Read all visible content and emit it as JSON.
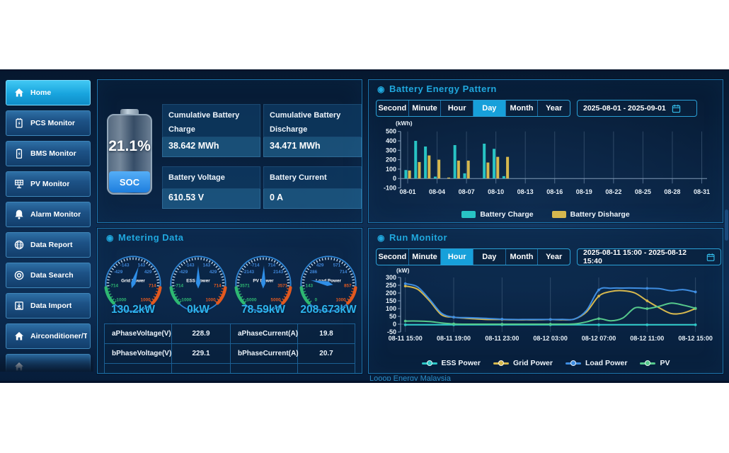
{
  "footer": {
    "text": "Looop Energy Malaysia"
  },
  "sidebar": {
    "items": [
      {
        "label": "Home",
        "icon": "home",
        "active": true
      },
      {
        "label": "PCS Monitor",
        "icon": "pcs",
        "active": false
      },
      {
        "label": "BMS Monitor",
        "icon": "bms",
        "active": false
      },
      {
        "label": "PV Monitor",
        "icon": "pv",
        "active": false
      },
      {
        "label": "Alarm Monitor",
        "icon": "alarm",
        "active": false
      },
      {
        "label": "Data Report",
        "icon": "globe",
        "active": false
      },
      {
        "label": "Data Search",
        "icon": "target",
        "active": false
      },
      {
        "label": "Data Import",
        "icon": "import",
        "active": false
      },
      {
        "label": "Airconditioner/Ten",
        "icon": "aircon",
        "active": false
      },
      {
        "label": "",
        "icon": "home",
        "active": false
      }
    ]
  },
  "battery_status": {
    "soc_percent": "21.1%",
    "soc_label": "SOC",
    "cards": [
      {
        "label": "Cumulative Battery Charge",
        "value": "38.642 MWh"
      },
      {
        "label": "Cumulative Battery Discharge",
        "value": "34.471 MWh"
      },
      {
        "label": "Battery Voltage",
        "value": "610.53 V"
      },
      {
        "label": "Battery Current",
        "value": "0 A"
      }
    ]
  },
  "battery_energy_pattern": {
    "title": "Battery Energy Pattern",
    "tabs": [
      "Second",
      "Minute",
      "Hour",
      "Day",
      "Month",
      "Year"
    ],
    "active_tab": "Day",
    "date_range": "2025-08-01 - 2025-09-01",
    "chart_data": {
      "type": "bar",
      "unit_label": "(kWh)",
      "ylim": [
        -100,
        500
      ],
      "yticks": [
        500,
        400,
        300,
        200,
        100,
        0,
        -100
      ],
      "categories": [
        "08-01",
        "08-02",
        "08-03",
        "08-04",
        "08-05",
        "08-06",
        "08-07",
        "08-08",
        "08-09",
        "08-10",
        "08-11",
        "08-12",
        "08-13",
        "08-14",
        "08-15",
        "08-16",
        "08-17",
        "08-18",
        "08-19",
        "08-20",
        "08-21",
        "08-22",
        "08-23",
        "08-24",
        "08-25",
        "08-26",
        "08-27",
        "08-28",
        "08-29",
        "08-30",
        "08-31"
      ],
      "xtick_every": 3,
      "legend_position": "bottom",
      "grid": true,
      "series": [
        {
          "name": "Battery Charge",
          "color": "#28c4c4",
          "values": [
            90,
            400,
            340,
            20,
            0,
            355,
            55,
            0,
            370,
            315,
            25,
            0,
            0,
            0,
            0,
            0,
            0,
            0,
            0,
            0,
            0,
            0,
            0,
            0,
            0,
            0,
            0,
            0,
            0,
            0,
            0
          ]
        },
        {
          "name": "Battery Disharge",
          "color": "#d6b84e",
          "values": [
            85,
            175,
            245,
            200,
            10,
            190,
            190,
            0,
            170,
            230,
            230,
            0,
            0,
            0,
            0,
            0,
            0,
            0,
            0,
            0,
            0,
            0,
            0,
            0,
            0,
            0,
            0,
            0,
            0,
            0,
            0
          ]
        }
      ]
    }
  },
  "metering_data": {
    "title": "Metering Data",
    "gauges": [
      {
        "name": "Grid Power",
        "value": 130.2,
        "value_label": "130.2kW",
        "min": -1000,
        "max": 1000,
        "scale_rows": [
          [
            "-143",
            "143"
          ],
          [
            "-429",
            "429"
          ],
          [
            "-714",
            "714"
          ],
          [
            "-1000",
            "1000"
          ]
        ]
      },
      {
        "name": "ESS Power",
        "value": 0,
        "value_label": "0kW",
        "min": -1000,
        "max": 1000,
        "scale_rows": [
          [
            "-143",
            "143"
          ],
          [
            "-429",
            "429"
          ],
          [
            "-714",
            "714"
          ],
          [
            "-1000",
            "1000"
          ]
        ]
      },
      {
        "name": "PV Power",
        "value": 78.59,
        "value_label": "78.59kW",
        "min": -5000,
        "max": 5000,
        "scale_rows": [
          [
            "-714",
            "714"
          ],
          [
            "-2143",
            "2143"
          ],
          [
            "-3571",
            "3571"
          ],
          [
            "-5000",
            "5000"
          ]
        ]
      },
      {
        "name": "Load Power",
        "value": 208.673,
        "value_label": "208.673kW",
        "min": 0,
        "max": 1000,
        "scale_rows": [
          [
            "429",
            "571"
          ],
          [
            "286",
            "714"
          ],
          [
            "143",
            "857"
          ],
          [
            "0",
            "1000"
          ]
        ]
      }
    ],
    "table": {
      "rows": [
        [
          "aPhaseVoltage(V)",
          "228.9",
          "aPhaseCurrent(A)",
          "19.8"
        ],
        [
          "bPhaseVoltage(V)",
          "229.1",
          "bPhaseCurrent(A)",
          "20.7"
        ],
        [
          "",
          "",
          "",
          ""
        ]
      ]
    }
  },
  "run_monitor": {
    "title": "Run Monitor",
    "tabs": [
      "Second",
      "Minute",
      "Hour",
      "Day",
      "Month",
      "Year"
    ],
    "active_tab": "Hour",
    "date_range": "2025-08-11 15:00 - 2025-08-12 15:40",
    "chart_data": {
      "type": "line",
      "unit_label": "(kW)",
      "ylim": [
        -50,
        300
      ],
      "yticks": [
        300,
        250,
        200,
        150,
        100,
        50,
        0,
        -50
      ],
      "xtick_labels": [
        "08-11 15:00",
        "08-11 19:00",
        "08-11 23:00",
        "08-12 03:00",
        "08-12 07:00",
        "08-12 11:00",
        "08-12 15:00"
      ],
      "hours_per_point": 1,
      "legend_position": "bottom",
      "grid": true,
      "series": [
        {
          "name": "ESS Power",
          "color": "#2ec7c7",
          "values": [
            -4,
            -4,
            -4,
            -4,
            -4,
            -4,
            -4,
            -4,
            -4,
            -4,
            -4,
            -4,
            -4,
            -4,
            -4,
            -4,
            -4,
            -4,
            -4,
            -4,
            -4,
            -4,
            -4,
            -4,
            -4
          ]
        },
        {
          "name": "Grid Power",
          "color": "#d6b84e",
          "values": [
            245,
            225,
            150,
            60,
            45,
            38,
            33,
            30,
            30,
            28,
            28,
            28,
            30,
            28,
            33,
            80,
            180,
            210,
            215,
            200,
            150,
            105,
            68,
            72,
            100
          ]
        },
        {
          "name": "Load Power",
          "color": "#3f8de0",
          "values": [
            260,
            240,
            160,
            70,
            45,
            42,
            40,
            36,
            32,
            30,
            30,
            30,
            30,
            31,
            33,
            90,
            220,
            231,
            232,
            232,
            230,
            228,
            215,
            222,
            207
          ]
        },
        {
          "name": "PV",
          "color": "#56c98c",
          "values": [
            20,
            20,
            17,
            8,
            2,
            0,
            0,
            0,
            0,
            0,
            0,
            0,
            0,
            0,
            2,
            15,
            35,
            22,
            40,
            105,
            100,
            115,
            135,
            122,
            102
          ]
        }
      ]
    }
  }
}
